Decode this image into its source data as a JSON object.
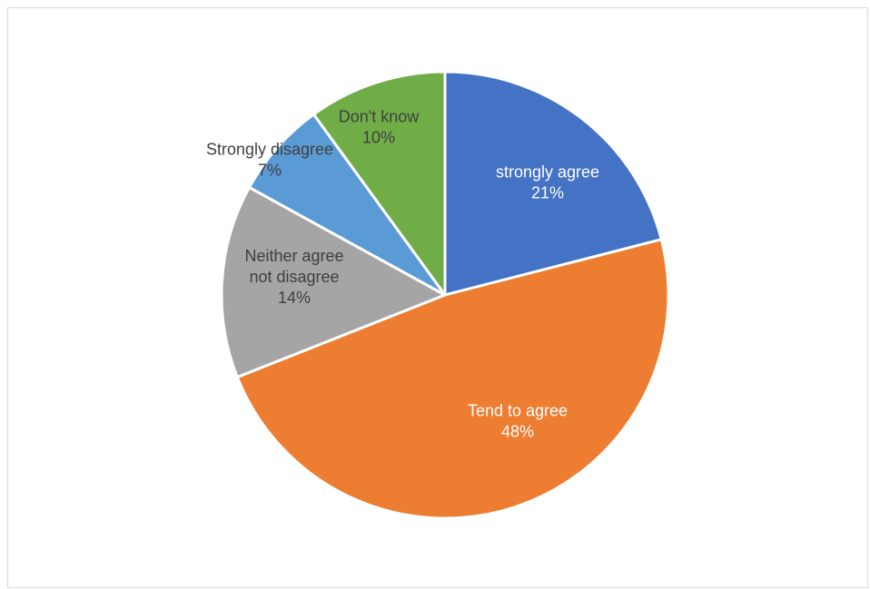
{
  "chart_data": {
    "type": "pie",
    "title": "",
    "slices": [
      {
        "label": "strongly agree",
        "value": 21,
        "pct_label": "21%",
        "color": "#4472C4",
        "text_color": "#ffffff"
      },
      {
        "label": "Tend to agree",
        "value": 48,
        "pct_label": "48%",
        "color": "#ED7D31",
        "text_color": "#ffffff"
      },
      {
        "label": "Neither agree not disagree",
        "label_lines": [
          "Neither agree",
          "not disagree"
        ],
        "value": 14,
        "pct_label": "14%",
        "color": "#A5A5A5",
        "text_color": "#404040"
      },
      {
        "label": "Strongly disagree",
        "value": 7,
        "pct_label": "7%",
        "color": "#5B9BD5",
        "text_color": "#404040"
      },
      {
        "label": "Don't know",
        "value": 10,
        "pct_label": "10%",
        "color": "#70AD47",
        "text_color": "#404040"
      }
    ],
    "start_angle_deg": 0,
    "direction": "clockwise",
    "legend": "none",
    "data_labels": "category-and-percent"
  }
}
